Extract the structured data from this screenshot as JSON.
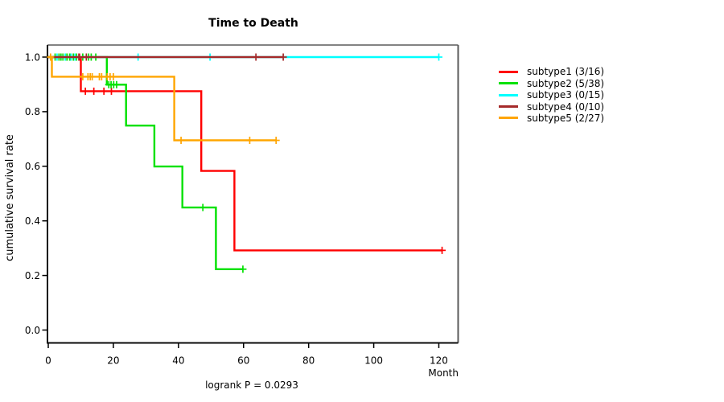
{
  "chart_data": {
    "type": "line",
    "variant": "kaplan-meier-step",
    "title": "Time to Death",
    "xlabel": "Month",
    "ylabel": "cumulative survival rate",
    "annotation": "logrank P = 0.0293",
    "x_ticks": [
      0,
      20,
      40,
      60,
      80,
      100,
      120
    ],
    "y_ticks": [
      0.0,
      0.2,
      0.4,
      0.6,
      0.8,
      1.0
    ],
    "xlim": [
      0,
      126
    ],
    "ylim": [
      0,
      1.04
    ],
    "grid": false,
    "legend_position": "right-outside",
    "series": [
      {
        "name": "subtype1",
        "legend_label": "subtype1 (3/16)",
        "events": "3/16",
        "color": "#FF0000",
        "steps": [
          [
            0,
            1
          ],
          [
            10,
            1
          ],
          [
            10,
            0.875
          ],
          [
            47,
            0.875
          ],
          [
            47,
            0.583
          ],
          [
            57.2,
            0.583
          ],
          [
            57.2,
            0.292
          ],
          [
            121,
            0.292
          ]
        ],
        "censors": [
          [
            9.6,
            1
          ],
          [
            11.4,
            0.875
          ],
          [
            14,
            0.875
          ],
          [
            17.1,
            0.875
          ],
          [
            19.4,
            0.875
          ],
          [
            121,
            0.292
          ]
        ]
      },
      {
        "name": "subtype2",
        "legend_label": "subtype2 (5/38)",
        "events": "5/38",
        "color": "#00E100",
        "steps": [
          [
            0,
            1
          ],
          [
            18,
            1
          ],
          [
            18,
            0.899
          ],
          [
            23.9,
            0.899
          ],
          [
            23.9,
            0.749
          ],
          [
            32.6,
            0.749
          ],
          [
            32.6,
            0.599
          ],
          [
            41.2,
            0.599
          ],
          [
            41.2,
            0.449
          ],
          [
            51.5,
            0.449
          ],
          [
            51.5,
            0.223
          ],
          [
            59.8,
            0.223
          ]
        ],
        "censors": [
          [
            2.1,
            1
          ],
          [
            3.3,
            1
          ],
          [
            3.9,
            1
          ],
          [
            4.5,
            1
          ],
          [
            5.3,
            1
          ],
          [
            5.8,
            1
          ],
          [
            6.6,
            1
          ],
          [
            7.7,
            1
          ],
          [
            8.7,
            1
          ],
          [
            10.6,
            1
          ],
          [
            12.4,
            1
          ],
          [
            13.2,
            1
          ],
          [
            14.6,
            1
          ],
          [
            18.6,
            0.899
          ],
          [
            19.3,
            0.899
          ],
          [
            20.1,
            0.899
          ],
          [
            21,
            0.899
          ],
          [
            47.5,
            0.449
          ],
          [
            59.8,
            0.223
          ]
        ]
      },
      {
        "name": "subtype3",
        "legend_label": "subtype3 (0/15)",
        "events": "0/15",
        "color": "#00FFFF",
        "steps": [
          [
            0,
            1
          ],
          [
            120,
            1
          ]
        ],
        "censors": [
          [
            2.7,
            1
          ],
          [
            5.2,
            1
          ],
          [
            7,
            1
          ],
          [
            8.2,
            1
          ],
          [
            27.6,
            1
          ],
          [
            49.7,
            1
          ],
          [
            120,
            1
          ]
        ]
      },
      {
        "name": "subtype4",
        "legend_label": "subtype4 (0/10)",
        "events": "0/10",
        "color": "#A52A2A",
        "steps": [
          [
            0,
            1
          ],
          [
            72.2,
            1
          ]
        ],
        "censors": [
          [
            9.4,
            1
          ],
          [
            11.7,
            1
          ],
          [
            63.8,
            1
          ],
          [
            72.2,
            1
          ]
        ]
      },
      {
        "name": "subtype5",
        "legend_label": "subtype5 (2/27)",
        "events": "2/27",
        "color": "#FFA500",
        "steps": [
          [
            0,
            1
          ],
          [
            1.1,
            1
          ],
          [
            1.1,
            0.928
          ],
          [
            38.7,
            0.928
          ],
          [
            38.7,
            0.695
          ],
          [
            70,
            0.695
          ]
        ],
        "censors": [
          [
            0.7,
            1
          ],
          [
            10.6,
            0.928
          ],
          [
            12.2,
            0.928
          ],
          [
            12.9,
            0.928
          ],
          [
            13.5,
            0.928
          ],
          [
            15.7,
            0.928
          ],
          [
            16.4,
            0.928
          ],
          [
            18.1,
            0.928
          ],
          [
            19,
            0.928
          ],
          [
            20,
            0.928
          ],
          [
            40.8,
            0.695
          ],
          [
            61.9,
            0.695
          ],
          [
            70,
            0.695
          ]
        ]
      }
    ]
  }
}
